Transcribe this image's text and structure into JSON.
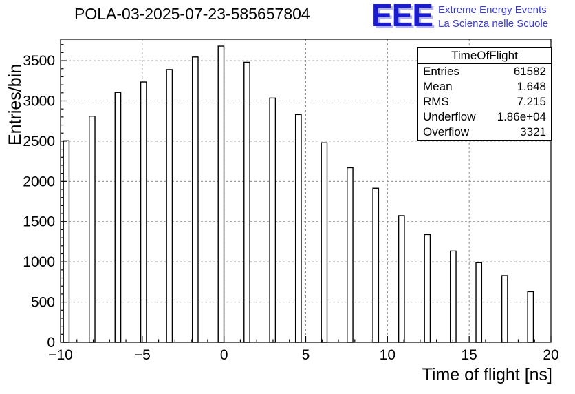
{
  "header": {
    "title": "POLA-03-2025-07-23-585657804",
    "logo": {
      "text": "EEE",
      "tagline1": "Extreme Energy Events",
      "tagline2": "La Scienza nelle Scuole",
      "color": "#1b1bd0"
    }
  },
  "stats": {
    "title": "TimeOfFlight",
    "rows": [
      {
        "label": "Entries",
        "value": "61582"
      },
      {
        "label": "Mean",
        "value": "1.648"
      },
      {
        "label": "RMS",
        "value": "7.215"
      },
      {
        "label": "Underflow",
        "value": "1.86e+04"
      },
      {
        "label": "Overflow",
        "value": "3321"
      }
    ]
  },
  "chart_data": {
    "type": "bar",
    "title": "POLA-03-2025-07-23-585657804",
    "xlabel": "Time of flight [ns]",
    "ylabel": "Entries/bin",
    "xlim": [
      -10,
      20
    ],
    "ylim": [
      0,
      3766
    ],
    "grid": true,
    "legend": "none",
    "x_major_ticks": [
      -10,
      -5,
      0,
      5,
      10,
      15,
      20
    ],
    "x_tick_labels": [
      "−10",
      "−5",
      "0",
      "5",
      "10",
      "15",
      "20"
    ],
    "x_minor_step": 1,
    "y_major_ticks": [
      0,
      500,
      1000,
      1500,
      2000,
      2500,
      3000,
      3500
    ],
    "y_tick_labels": [
      "0",
      "500",
      "1000",
      "1500",
      "2000",
      "2500",
      "3000",
      "3500"
    ],
    "y_minor_step": 100,
    "bar_width": 0.35,
    "bars": [
      {
        "x": -9.65,
        "y": 2505
      },
      {
        "x": -8.07,
        "y": 2810
      },
      {
        "x": -6.49,
        "y": 3105
      },
      {
        "x": -4.92,
        "y": 3235
      },
      {
        "x": -3.34,
        "y": 3390
      },
      {
        "x": -1.76,
        "y": 3545
      },
      {
        "x": -0.18,
        "y": 3680
      },
      {
        "x": 1.4,
        "y": 3480
      },
      {
        "x": 2.97,
        "y": 3035
      },
      {
        "x": 4.55,
        "y": 2830
      },
      {
        "x": 6.13,
        "y": 2480
      },
      {
        "x": 7.71,
        "y": 2170
      },
      {
        "x": 9.28,
        "y": 1915
      },
      {
        "x": 10.86,
        "y": 1575
      },
      {
        "x": 12.44,
        "y": 1340
      },
      {
        "x": 14.02,
        "y": 1135
      },
      {
        "x": 15.59,
        "y": 990
      },
      {
        "x": 17.17,
        "y": 830
      },
      {
        "x": 18.75,
        "y": 630
      }
    ]
  }
}
